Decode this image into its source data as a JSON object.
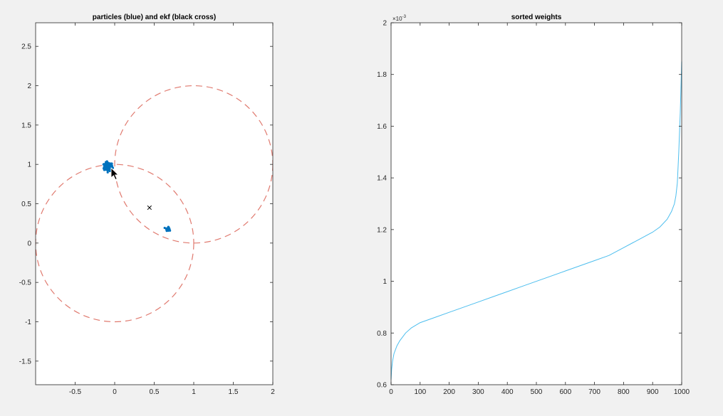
{
  "colors": {
    "background": "#f1f1f1",
    "axes_background": "#ffffff",
    "axes_line": "#262626",
    "particles": "#0072bd",
    "circles": "#e07a6f",
    "weights_line": "#4dbeee",
    "ekf_marker": "#000000"
  },
  "cursor": "arrow-cursor-icon",
  "chart_data": [
    {
      "type": "scatter",
      "title": "particles (blue) and ekf (black cross)",
      "xlim": [
        -1,
        2
      ],
      "ylim": [
        -1.8,
        2.8
      ],
      "xticks": [
        "-0.5",
        "0",
        "0.5",
        "1",
        "1.5",
        "2"
      ],
      "xtick_values": [
        -0.5,
        0,
        0.5,
        1,
        1.5,
        2
      ],
      "yticks": [
        "-1.5",
        "-1",
        "-0.5",
        "0",
        "0.5",
        "1",
        "1.5",
        "2",
        "2.5"
      ],
      "ytick_values": [
        -1.5,
        -1,
        -0.5,
        0,
        0.5,
        1,
        1.5,
        2,
        2.5
      ],
      "circles": [
        {
          "center": [
            0,
            0
          ],
          "radius": 1,
          "style": "dashed"
        },
        {
          "center": [
            1,
            1
          ],
          "radius": 1,
          "style": "dashed"
        }
      ],
      "particle_clusters": [
        {
          "center": [
            -0.08,
            0.97
          ],
          "spread": 0.045,
          "count": 160
        },
        {
          "center": [
            0.67,
            0.18
          ],
          "spread": 0.018,
          "count": 40
        }
      ],
      "ekf_estimate": {
        "x": 0.44,
        "y": 0.45,
        "marker": "x"
      }
    },
    {
      "type": "line",
      "title": "sorted weights",
      "xlim": [
        0,
        1000
      ],
      "ylim": [
        0.6,
        2.0
      ],
      "exponent_label": "×10",
      "exponent_power": "-3",
      "xticks": [
        "0",
        "100",
        "200",
        "300",
        "400",
        "500",
        "600",
        "700",
        "800",
        "900",
        "1000"
      ],
      "xtick_values": [
        0,
        100,
        200,
        300,
        400,
        500,
        600,
        700,
        800,
        900,
        1000
      ],
      "yticks": [
        "0.6",
        "0.8",
        "1",
        "1.2",
        "1.4",
        "1.6",
        "1.8",
        "2"
      ],
      "ytick_values": [
        0.6,
        0.8,
        1.0,
        1.2,
        1.4,
        1.6,
        1.8,
        2.0
      ],
      "x": [
        0,
        2,
        5,
        10,
        20,
        30,
        50,
        70,
        100,
        150,
        200,
        250,
        300,
        350,
        400,
        450,
        500,
        550,
        600,
        650,
        700,
        750,
        800,
        850,
        900,
        925,
        950,
        965,
        975,
        980,
        985,
        990,
        995,
        1000
      ],
      "y": [
        0.62,
        0.66,
        0.69,
        0.72,
        0.75,
        0.77,
        0.8,
        0.82,
        0.84,
        0.86,
        0.88,
        0.9,
        0.92,
        0.94,
        0.96,
        0.98,
        1.0,
        1.02,
        1.04,
        1.06,
        1.08,
        1.1,
        1.13,
        1.16,
        1.19,
        1.21,
        1.24,
        1.27,
        1.3,
        1.33,
        1.38,
        1.5,
        1.65,
        1.85
      ]
    }
  ]
}
